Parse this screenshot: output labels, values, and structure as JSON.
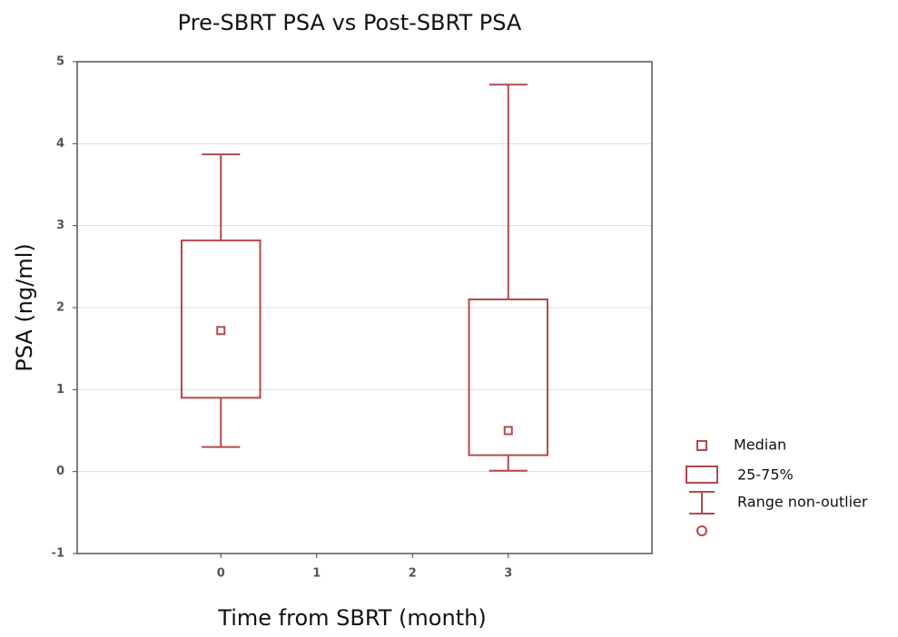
{
  "chart_data": {
    "type": "box",
    "title": "Pre-SBRT PSA vs Post-SBRT PSA",
    "x_label": "Time from SBRT (month)",
    "y_label": "PSA (ng/ml)",
    "x": [
      0,
      3
    ],
    "min": [
      0.3,
      0.01
    ],
    "q1": [
      0.9,
      0.2
    ],
    "median": [
      1.72,
      0.5
    ],
    "q3": [
      2.82,
      2.1
    ],
    "max": [
      3.87,
      4.72
    ],
    "color": "#b5494d",
    "xlim": [
      -1.5,
      4.5
    ],
    "xticks": [
      0,
      1,
      2,
      3
    ],
    "ylim": [
      -1,
      5
    ],
    "yticks": [
      -1,
      0,
      1,
      2,
      3,
      4,
      5
    ],
    "grid": true,
    "legend": [
      "Median",
      "25-75%",
      "Range non-outlier"
    ]
  }
}
